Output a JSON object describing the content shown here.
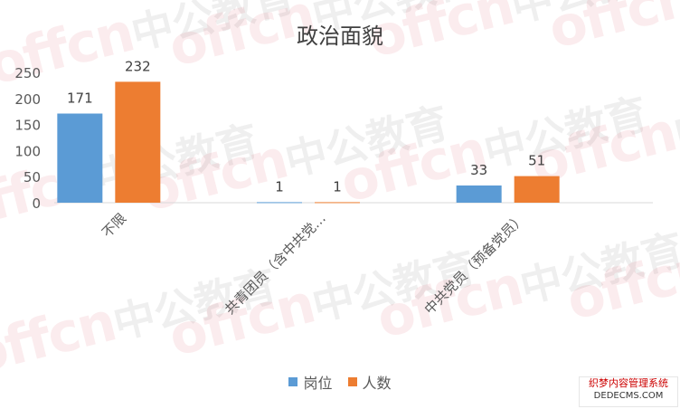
{
  "chart_data": {
    "type": "bar",
    "title": "政治面貌",
    "categories": [
      "不限",
      "共青团员（含中共党…",
      "中共党员（预备党员）"
    ],
    "series": [
      {
        "name": "岗位",
        "values": [
          171,
          1,
          33
        ],
        "color": "#5B9BD5"
      },
      {
        "name": "人数",
        "values": [
          232,
          1,
          51
        ],
        "color": "#ED7D31"
      }
    ],
    "ylim": [
      0,
      250
    ],
    "yticks": [
      0,
      50,
      100,
      150,
      200,
      250
    ],
    "grid": false,
    "legend": "bottom",
    "data_labels": true
  },
  "watermark": {
    "latin": "offcn",
    "cjk": "中公教育"
  },
  "badge": {
    "line1": "织梦内容管理系统",
    "line2": "DEDECMS.COM"
  }
}
